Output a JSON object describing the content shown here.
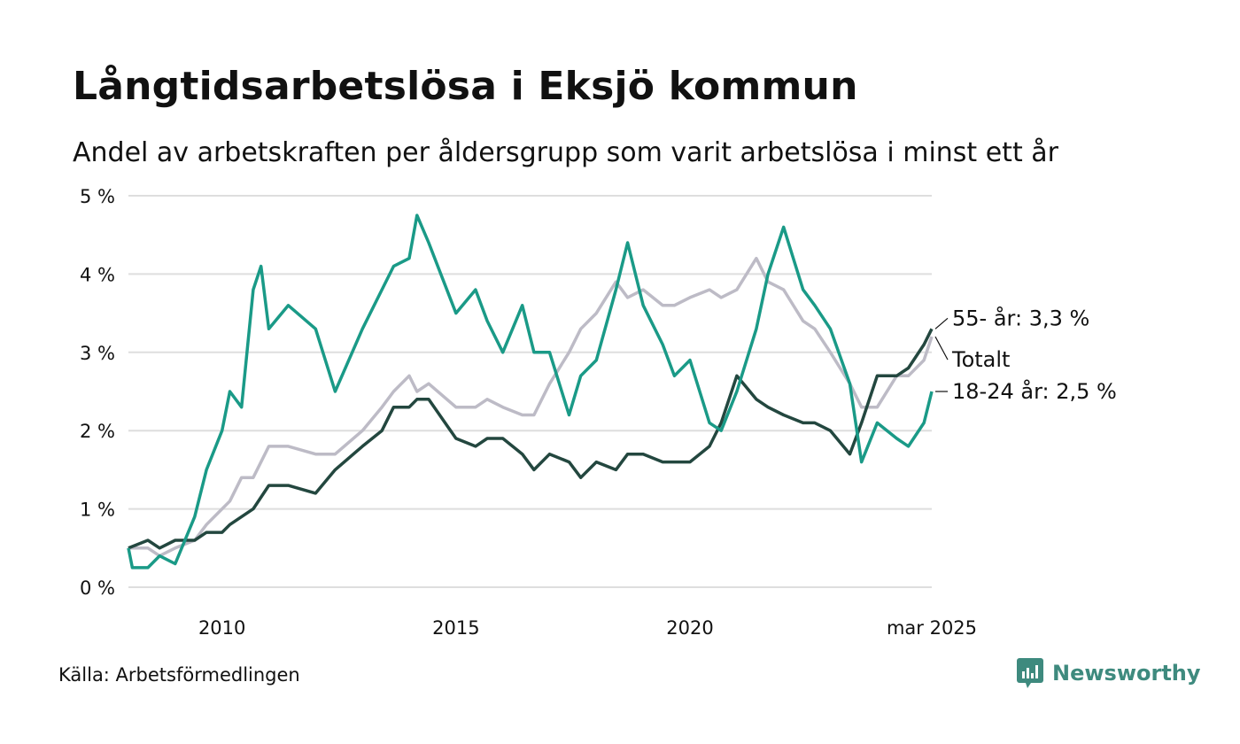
{
  "header": {
    "title": "Långtidsarbetslösa i Eksjö kommun",
    "subtitle": "Andel av arbetskraften per åldersgrupp som varit arbetslösa i minst ett år"
  },
  "footer": {
    "source": "Källa: Arbetsförmedlingen",
    "logo_text": "Newsworthy"
  },
  "chart_data": {
    "type": "line",
    "x_start": "2008-01",
    "x_end": "2025-03",
    "ylim": [
      0,
      5
    ],
    "y_ticks": [
      0,
      1,
      2,
      3,
      4,
      5
    ],
    "y_tick_labels": [
      "0 %",
      "1 %",
      "2 %",
      "3 %",
      "4 %",
      "5 %"
    ],
    "x_ticks": [
      "2010-01",
      "2015-01",
      "2020-01",
      "2025-03"
    ],
    "x_tick_labels": [
      "2010",
      "2015",
      "2020",
      "mar 2025"
    ],
    "grid": true,
    "series": [
      {
        "name": "Totalt",
        "end_label": "Totalt",
        "color": "#bdbbc6",
        "points": [
          [
            "2008-01",
            0.5
          ],
          [
            "2008-06",
            0.5
          ],
          [
            "2008-09",
            0.4
          ],
          [
            "2009-01",
            0.5
          ],
          [
            "2009-06",
            0.6
          ],
          [
            "2009-09",
            0.8
          ],
          [
            "2010-01",
            1.0
          ],
          [
            "2010-03",
            1.1
          ],
          [
            "2010-06",
            1.4
          ],
          [
            "2010-09",
            1.4
          ],
          [
            "2011-01",
            1.8
          ],
          [
            "2011-06",
            1.8
          ],
          [
            "2012-01",
            1.7
          ],
          [
            "2012-06",
            1.7
          ],
          [
            "2013-01",
            2.0
          ],
          [
            "2013-06",
            2.3
          ],
          [
            "2013-09",
            2.5
          ],
          [
            "2014-01",
            2.7
          ],
          [
            "2014-03",
            2.5
          ],
          [
            "2014-06",
            2.6
          ],
          [
            "2015-01",
            2.3
          ],
          [
            "2015-06",
            2.3
          ],
          [
            "2015-09",
            2.4
          ],
          [
            "2016-01",
            2.3
          ],
          [
            "2016-06",
            2.2
          ],
          [
            "2016-09",
            2.2
          ],
          [
            "2017-01",
            2.6
          ],
          [
            "2017-06",
            3.0
          ],
          [
            "2017-09",
            3.3
          ],
          [
            "2018-01",
            3.5
          ],
          [
            "2018-06",
            3.9
          ],
          [
            "2018-09",
            3.7
          ],
          [
            "2019-01",
            3.8
          ],
          [
            "2019-06",
            3.6
          ],
          [
            "2019-09",
            3.6
          ],
          [
            "2020-01",
            3.7
          ],
          [
            "2020-06",
            3.8
          ],
          [
            "2020-09",
            3.7
          ],
          [
            "2021-01",
            3.8
          ],
          [
            "2021-06",
            4.2
          ],
          [
            "2021-09",
            3.9
          ],
          [
            "2022-01",
            3.8
          ],
          [
            "2022-06",
            3.4
          ],
          [
            "2022-09",
            3.3
          ],
          [
            "2023-01",
            3.0
          ],
          [
            "2023-06",
            2.6
          ],
          [
            "2023-09",
            2.3
          ],
          [
            "2024-01",
            2.3
          ],
          [
            "2024-06",
            2.7
          ],
          [
            "2024-09",
            2.7
          ],
          [
            "2025-01",
            2.9
          ],
          [
            "2025-03",
            3.2
          ]
        ]
      },
      {
        "name": "55- år",
        "end_label": "55- år: 3,3 %",
        "color": "#23473f",
        "points": [
          [
            "2008-01",
            0.5
          ],
          [
            "2008-06",
            0.6
          ],
          [
            "2008-09",
            0.5
          ],
          [
            "2009-01",
            0.6
          ],
          [
            "2009-06",
            0.6
          ],
          [
            "2009-09",
            0.7
          ],
          [
            "2010-01",
            0.7
          ],
          [
            "2010-03",
            0.8
          ],
          [
            "2010-06",
            0.9
          ],
          [
            "2010-09",
            1.0
          ],
          [
            "2011-01",
            1.3
          ],
          [
            "2011-06",
            1.3
          ],
          [
            "2012-01",
            1.2
          ],
          [
            "2012-06",
            1.5
          ],
          [
            "2013-01",
            1.8
          ],
          [
            "2013-06",
            2.0
          ],
          [
            "2013-09",
            2.3
          ],
          [
            "2014-01",
            2.3
          ],
          [
            "2014-03",
            2.4
          ],
          [
            "2014-06",
            2.4
          ],
          [
            "2015-01",
            1.9
          ],
          [
            "2015-06",
            1.8
          ],
          [
            "2015-09",
            1.9
          ],
          [
            "2016-01",
            1.9
          ],
          [
            "2016-06",
            1.7
          ],
          [
            "2016-09",
            1.5
          ],
          [
            "2017-01",
            1.7
          ],
          [
            "2017-06",
            1.6
          ],
          [
            "2017-09",
            1.4
          ],
          [
            "2018-01",
            1.6
          ],
          [
            "2018-06",
            1.5
          ],
          [
            "2018-09",
            1.7
          ],
          [
            "2019-01",
            1.7
          ],
          [
            "2019-06",
            1.6
          ],
          [
            "2019-09",
            1.6
          ],
          [
            "2020-01",
            1.6
          ],
          [
            "2020-06",
            1.8
          ],
          [
            "2020-09",
            2.1
          ],
          [
            "2021-01",
            2.7
          ],
          [
            "2021-06",
            2.4
          ],
          [
            "2021-09",
            2.3
          ],
          [
            "2022-01",
            2.2
          ],
          [
            "2022-06",
            2.1
          ],
          [
            "2022-09",
            2.1
          ],
          [
            "2023-01",
            2.0
          ],
          [
            "2023-06",
            1.7
          ],
          [
            "2023-09",
            2.1
          ],
          [
            "2024-01",
            2.7
          ],
          [
            "2024-06",
            2.7
          ],
          [
            "2024-09",
            2.8
          ],
          [
            "2025-01",
            3.1
          ],
          [
            "2025-03",
            3.3
          ]
        ]
      },
      {
        "name": "18-24 år",
        "end_label": "18-24 år: 2,5 %",
        "color": "#1a9a87",
        "points": [
          [
            "2008-01",
            0.5
          ],
          [
            "2008-02",
            0.25
          ],
          [
            "2008-06",
            0.25
          ],
          [
            "2008-09",
            0.4
          ],
          [
            "2009-01",
            0.3
          ],
          [
            "2009-06",
            0.9
          ],
          [
            "2009-09",
            1.5
          ],
          [
            "2010-01",
            2.0
          ],
          [
            "2010-03",
            2.5
          ],
          [
            "2010-06",
            2.3
          ],
          [
            "2010-09",
            3.8
          ],
          [
            "2010-11",
            4.1
          ],
          [
            "2011-01",
            3.3
          ],
          [
            "2011-06",
            3.6
          ],
          [
            "2012-01",
            3.3
          ],
          [
            "2012-06",
            2.5
          ],
          [
            "2013-01",
            3.3
          ],
          [
            "2013-06",
            3.8
          ],
          [
            "2013-09",
            4.1
          ],
          [
            "2014-01",
            4.2
          ],
          [
            "2014-03",
            4.75
          ],
          [
            "2014-06",
            4.4
          ],
          [
            "2015-01",
            3.5
          ],
          [
            "2015-06",
            3.8
          ],
          [
            "2015-09",
            3.4
          ],
          [
            "2016-01",
            3.0
          ],
          [
            "2016-06",
            3.6
          ],
          [
            "2016-09",
            3.0
          ],
          [
            "2017-01",
            3.0
          ],
          [
            "2017-06",
            2.2
          ],
          [
            "2017-09",
            2.7
          ],
          [
            "2018-01",
            2.9
          ],
          [
            "2018-06",
            3.8
          ],
          [
            "2018-09",
            4.4
          ],
          [
            "2019-01",
            3.6
          ],
          [
            "2019-06",
            3.1
          ],
          [
            "2019-09",
            2.7
          ],
          [
            "2020-01",
            2.9
          ],
          [
            "2020-06",
            2.1
          ],
          [
            "2020-09",
            2.0
          ],
          [
            "2021-01",
            2.5
          ],
          [
            "2021-06",
            3.3
          ],
          [
            "2021-09",
            4.0
          ],
          [
            "2022-01",
            4.6
          ],
          [
            "2022-06",
            3.8
          ],
          [
            "2022-09",
            3.6
          ],
          [
            "2023-01",
            3.3
          ],
          [
            "2023-06",
            2.6
          ],
          [
            "2023-09",
            1.6
          ],
          [
            "2024-01",
            2.1
          ],
          [
            "2024-06",
            1.9
          ],
          [
            "2024-09",
            1.8
          ],
          [
            "2025-01",
            2.1
          ],
          [
            "2025-03",
            2.5
          ]
        ]
      }
    ]
  }
}
